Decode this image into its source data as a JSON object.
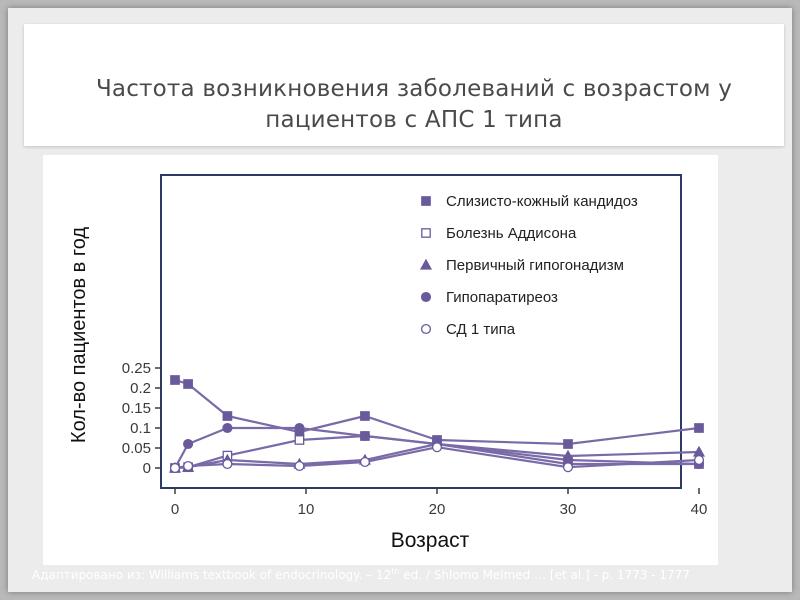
{
  "slide": {
    "title": "Частота возникновения заболеваний с возрастом у пациентов с АПС 1 типа",
    "caption_before": "Адаптировано из: Williams textbook of endocrinology. – 12",
    "caption_sup": "th",
    "caption_after": " ed. / Shlomo Melmed … [et al.] - p. 1773 - 1777"
  },
  "colors": {
    "series_line": "#7a6aa8",
    "marker_fill": "#6a5a9c",
    "frame": "#2d3a63",
    "axis_text": "#3a3a3a"
  },
  "chart_data": {
    "type": "line",
    "xlabel": "Возраст",
    "ylabel": "Кол-во пациентов в год",
    "xlim": [
      -1,
      40.5
    ],
    "ylim": [
      -0.01,
      0.28
    ],
    "xticks": [
      0,
      10,
      20,
      30,
      40
    ],
    "xtick_labels": [
      "0",
      "10",
      "20",
      "30",
      "40"
    ],
    "yticks": [
      0,
      0.05,
      0.1,
      0.15,
      0.2,
      0.25
    ],
    "ytick_labels": [
      "0",
      "0.05",
      "0.1",
      "0.15",
      "0.2",
      "0.25"
    ],
    "grid": false,
    "legend_position": "top-right",
    "series": [
      {
        "name": "Слизисто-кожный кандидоз",
        "marker": "square-filled",
        "x": [
          0,
          1,
          4,
          9.5,
          14.5,
          20,
          30,
          40
        ],
        "y": [
          0.22,
          0.21,
          0.13,
          0.09,
          0.13,
          0.07,
          0.06,
          0.1
        ]
      },
      {
        "name": "Болезнь Аддисона",
        "marker": "square-open",
        "x": [
          0,
          1,
          4,
          9.5,
          14.5,
          20,
          30,
          40
        ],
        "y": [
          0,
          0.002,
          0.031,
          0.07,
          0.08,
          0.06,
          0.02,
          0.01
        ]
      },
      {
        "name": "Первичный гипогонадизм",
        "marker": "triangle-filled",
        "x": [
          0,
          1,
          4,
          9.5,
          14.5,
          20,
          30,
          40
        ],
        "y": [
          0,
          0.002,
          0.02,
          0.01,
          0.02,
          0.06,
          0.03,
          0.04
        ]
      },
      {
        "name": "Гипопаратиреоз",
        "marker": "circle-filled",
        "x": [
          0,
          1,
          4,
          9.5,
          14.5,
          20,
          30,
          40
        ],
        "y": [
          0,
          0.06,
          0.1,
          0.1,
          0.08,
          0.06,
          0.01,
          0.01
        ]
      },
      {
        "name": "СД 1 типа",
        "marker": "circle-open",
        "x": [
          0,
          1,
          4,
          9.5,
          14.5,
          20,
          30,
          40
        ],
        "y": [
          0,
          0.005,
          0.01,
          0.005,
          0.015,
          0.052,
          0.002,
          0.02
        ]
      }
    ]
  }
}
